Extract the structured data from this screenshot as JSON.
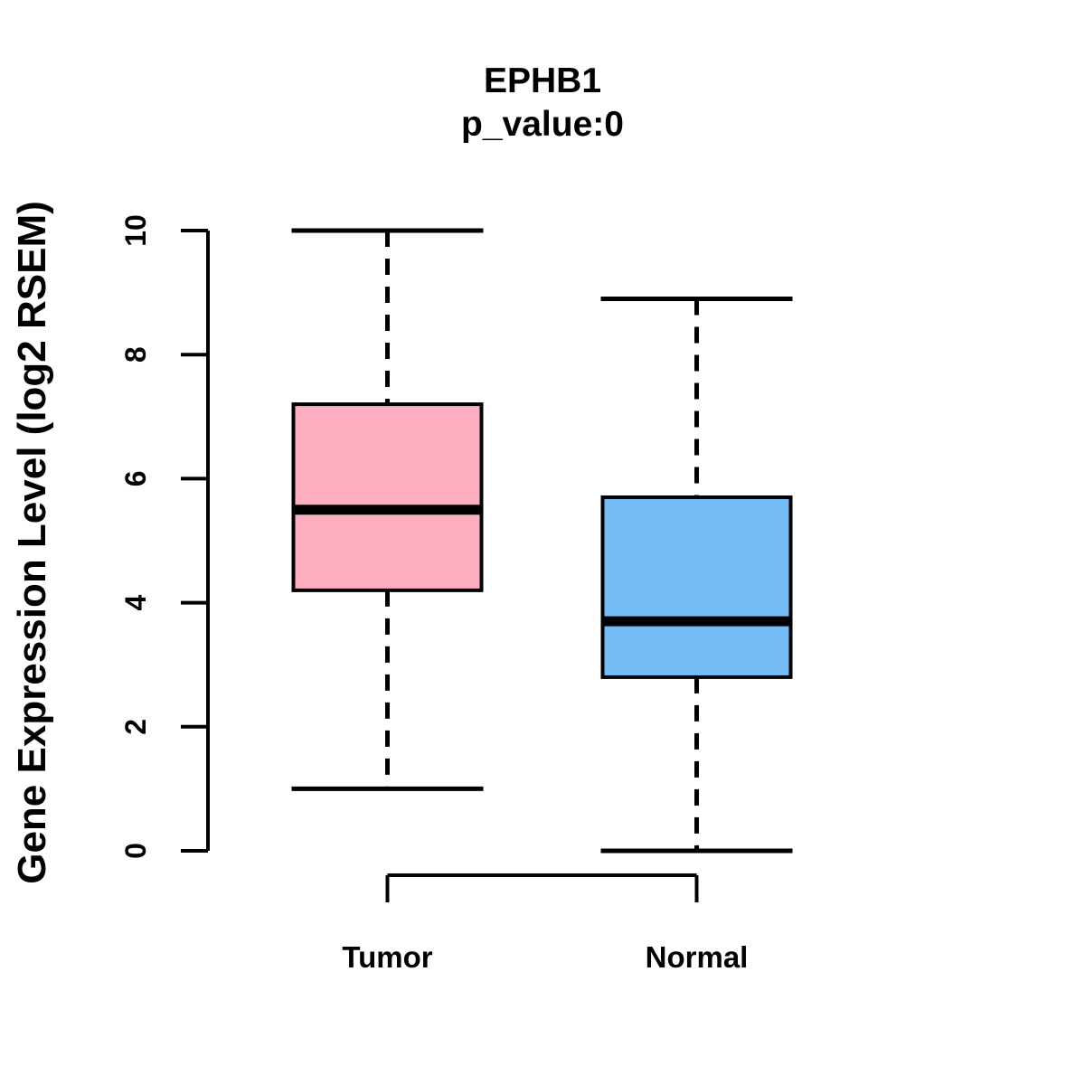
{
  "chart_data": {
    "type": "boxplot",
    "title": "EPHB1",
    "subtitle": "p_value:0",
    "ylabel": "Gene Expression Level (log2 RSEM)",
    "xlabel": "",
    "ylim": [
      0,
      10
    ],
    "yticks": [
      0,
      2,
      4,
      6,
      8,
      10
    ],
    "grid": false,
    "legend": "none",
    "categories": [
      "Tumor",
      "Normal"
    ],
    "groups": [
      {
        "label": "Tumor",
        "fill_color": "#FDAFC1",
        "whisker_low": 1.0,
        "q1": 4.2,
        "median": 5.5,
        "q3": 7.2,
        "whisker_high": 10.0
      },
      {
        "label": "Normal",
        "fill_color": "#74BDF7",
        "whisker_low": 0.0,
        "q1": 2.8,
        "median": 3.7,
        "q3": 5.7,
        "whisker_high": 8.9
      }
    ],
    "line_color": "#000000",
    "background_color": "#FFFFFF"
  }
}
